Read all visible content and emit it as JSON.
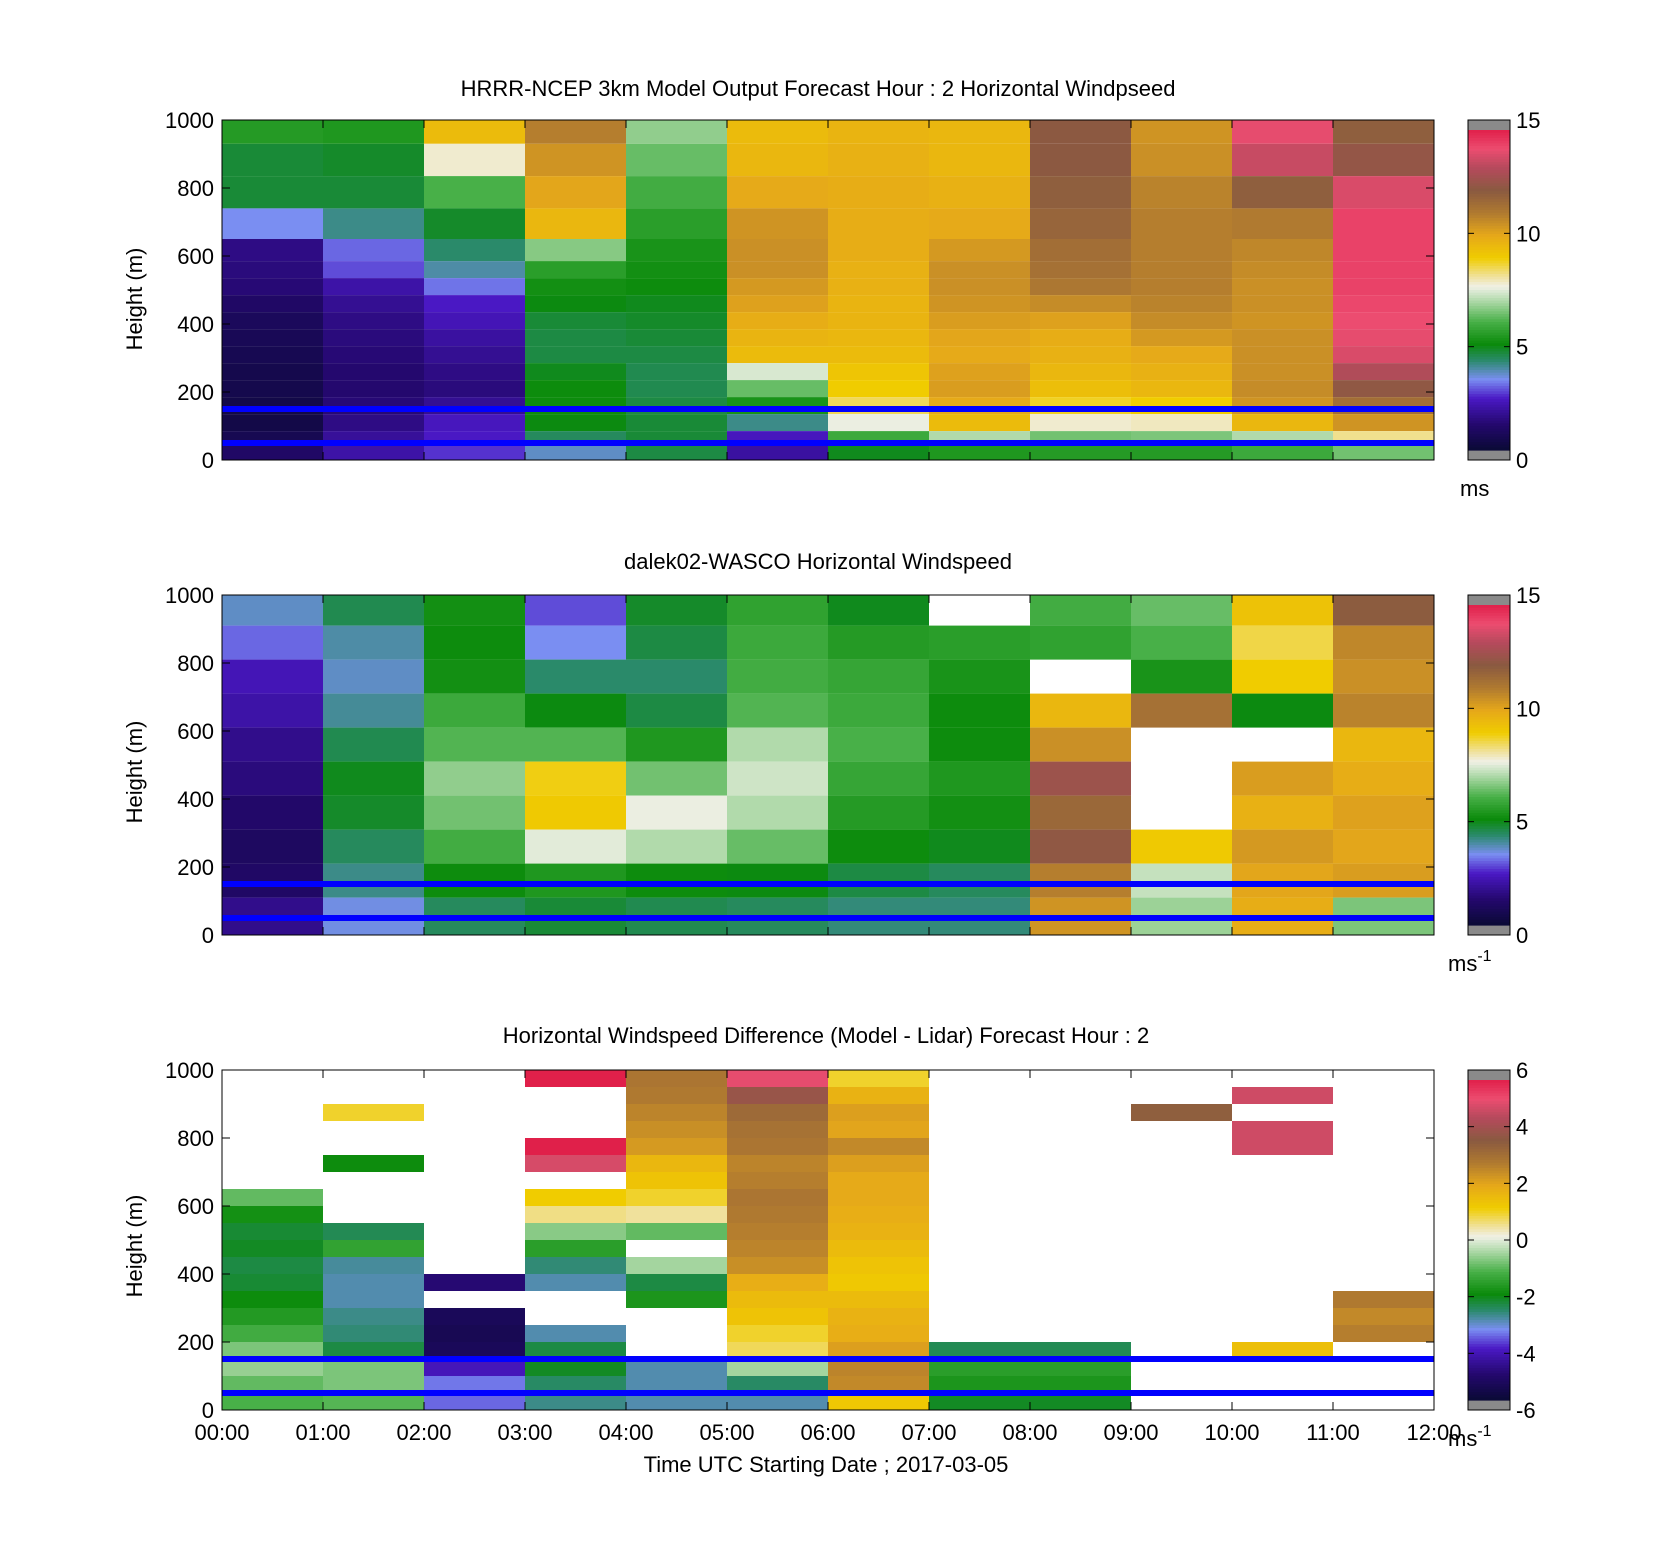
{
  "figure": {
    "xlabel": "Time UTC  Starting Date ; 2017-03-05",
    "x_ticks": [
      "00:00",
      "01:00",
      "02:00",
      "03:00",
      "04:00",
      "05:00",
      "06:00",
      "07:00",
      "08:00",
      "09:00",
      "10:00",
      "11:00",
      "12:00"
    ]
  },
  "chart_data": [
    {
      "type": "heatmap",
      "title": "HRRR-NCEP 3km Model Output   Forecast Hour : 2 Horizontal Windpseed",
      "ylabel": "Height (m)",
      "x_unit": "hours UTC",
      "xlim": [
        0,
        12
      ],
      "ylim": [
        0,
        1000
      ],
      "y_ticks": [
        "0",
        "200",
        "400",
        "600",
        "800",
        "1000"
      ],
      "colorbar": {
        "ticks": [
          "0",
          "5",
          "10",
          "15"
        ],
        "range": [
          0,
          15
        ],
        "unit_label": "ms",
        "unit_sup": ""
      },
      "reference_lines_m": [
        150,
        50
      ],
      "reference_line_color": "#0000ff",
      "heights_m": [
        980,
        880,
        790,
        690,
        610,
        560,
        510,
        460,
        410,
        360,
        310,
        260,
        210,
        160,
        110,
        60,
        25
      ],
      "hours": [
        0,
        1,
        2,
        3,
        4,
        5,
        6,
        7,
        8,
        9,
        10,
        11
      ],
      "values": [
        [
          5.4,
          5.3,
          9.5,
          11.0,
          6.7,
          9.5,
          9.7,
          9.6,
          12.2,
          10.5,
          14.0,
          12.0
        ],
        [
          4.6,
          4.7,
          7.8,
          10.5,
          6.3,
          9.6,
          9.8,
          9.6,
          12.2,
          10.6,
          13.5,
          12.4
        ],
        [
          4.6,
          4.6,
          6.0,
          10.1,
          5.9,
          10.0,
          9.9,
          9.8,
          12.0,
          10.9,
          12.0,
          13.8
        ],
        [
          3.3,
          4.0,
          4.7,
          9.6,
          5.5,
          10.5,
          9.9,
          10.0,
          11.8,
          11.0,
          11.1,
          14.3
        ],
        [
          1.5,
          3.0,
          4.2,
          6.6,
          5.2,
          10.6,
          9.9,
          10.4,
          11.5,
          11.0,
          10.8,
          14.3
        ],
        [
          1.4,
          2.8,
          3.8,
          5.5,
          5.1,
          10.6,
          9.8,
          10.6,
          11.4,
          11.0,
          10.7,
          14.3
        ],
        [
          1.3,
          2.0,
          3.1,
          5.1,
          5.0,
          10.4,
          9.8,
          10.6,
          11.2,
          11.0,
          10.6,
          14.3
        ],
        [
          1.0,
          1.7,
          2.4,
          4.9,
          4.8,
          10.2,
          9.7,
          10.5,
          10.7,
          10.9,
          10.6,
          14.2
        ],
        [
          0.8,
          1.5,
          2.2,
          4.6,
          4.7,
          9.9,
          9.7,
          10.3,
          10.2,
          10.7,
          10.5,
          14.1
        ],
        [
          0.7,
          1.4,
          1.9,
          4.5,
          4.6,
          9.7,
          9.6,
          10.1,
          9.9,
          10.4,
          10.6,
          14.0
        ],
        [
          0.6,
          1.3,
          1.7,
          4.5,
          4.5,
          9.5,
          9.5,
          10.0,
          9.8,
          10.0,
          10.6,
          13.8
        ],
        [
          0.5,
          1.2,
          1.5,
          4.8,
          4.4,
          7.4,
          9.2,
          10.2,
          9.6,
          9.8,
          10.6,
          13.1
        ],
        [
          0.5,
          1.2,
          1.4,
          5.0,
          4.4,
          6.3,
          9.0,
          10.3,
          9.4,
          9.6,
          10.7,
          12.3
        ],
        [
          0.4,
          1.3,
          1.7,
          5.0,
          4.5,
          5.2,
          8.5,
          10.0,
          8.8,
          9.0,
          10.5,
          11.5
        ],
        [
          0.4,
          1.5,
          2.3,
          4.9,
          4.6,
          4.0,
          7.6,
          9.5,
          7.8,
          7.9,
          9.6,
          10.5
        ],
        [
          0.6,
          1.8,
          2.4,
          4.3,
          4.6,
          2.3,
          5.8,
          7.0,
          6.4,
          6.5,
          7.0,
          8.2
        ],
        [
          1.0,
          2.0,
          2.6,
          3.6,
          4.5,
          1.9,
          4.8,
          5.3,
          5.4,
          5.4,
          5.8,
          6.4
        ]
      ]
    },
    {
      "type": "heatmap",
      "title": "dalek02-WASCO  Horizontal Windspeed",
      "ylabel": "Height (m)",
      "x_unit": "hours UTC",
      "xlim": [
        0,
        12
      ],
      "ylim": [
        0,
        1000
      ],
      "y_ticks": [
        "0",
        "200",
        "400",
        "600",
        "800",
        "1000"
      ],
      "colorbar": {
        "ticks": [
          "0",
          "5",
          "10",
          "15"
        ],
        "range": [
          0,
          15
        ],
        "unit_label": "ms",
        "unit_sup": "-1"
      },
      "reference_lines_m": [
        150,
        50
      ],
      "reference_line_color": "#0000ff",
      "heights_m": [
        960,
        860,
        760,
        660,
        560,
        460,
        360,
        260,
        160,
        60
      ],
      "hours": [
        0,
        1,
        2,
        3,
        4,
        5,
        6,
        7,
        8,
        9,
        10,
        11
      ],
      "values": [
        [
          3.6,
          4.4,
          5.1,
          2.8,
          4.7,
          5.6,
          4.8,
          null,
          5.9,
          6.3,
          9.3,
          12.1
        ],
        [
          3.0,
          3.8,
          5.0,
          3.3,
          4.5,
          5.8,
          5.4,
          5.5,
          5.6,
          6.0,
          8.6,
          10.8
        ],
        [
          2.2,
          3.6,
          5.1,
          4.2,
          4.2,
          5.9,
          5.7,
          5.2,
          null,
          5.2,
          9.0,
          10.6
        ],
        [
          2.0,
          3.9,
          5.8,
          4.9,
          4.5,
          6.1,
          5.8,
          5.0,
          9.6,
          11.4,
          4.9,
          10.9
        ],
        [
          1.6,
          4.4,
          6.1,
          6.1,
          5.3,
          7.0,
          6.0,
          5.0,
          10.6,
          null,
          null,
          9.6
        ],
        [
          1.4,
          4.8,
          6.7,
          8.9,
          6.4,
          7.3,
          5.7,
          5.3,
          12.6,
          null,
          10.3,
          9.9
        ],
        [
          1.1,
          4.7,
          6.4,
          9.1,
          7.6,
          7.0,
          5.4,
          5.1,
          11.7,
          null,
          9.8,
          10.2
        ],
        [
          0.9,
          4.3,
          5.9,
          7.5,
          7.0,
          6.3,
          5.0,
          4.8,
          12.3,
          9.1,
          10.4,
          10.1
        ],
        [
          1.0,
          4.0,
          5.0,
          5.3,
          5.0,
          4.9,
          4.5,
          4.3,
          11.0,
          7.2,
          10.1,
          10.3
        ],
        [
          1.6,
          3.4,
          4.3,
          4.6,
          4.4,
          4.3,
          4.1,
          4.1,
          10.5,
          6.8,
          9.9,
          6.5
        ]
      ]
    },
    {
      "type": "heatmap",
      "title": "Horizontal Windspeed Difference (Model - Lidar) Forecast Hour : 2",
      "ylabel": "Height (m)",
      "xlabel": "Time UTC  Starting Date ; 2017-03-05",
      "x_unit": "hours UTC",
      "xlim": [
        0,
        12
      ],
      "ylim": [
        0,
        1000
      ],
      "y_ticks": [
        "0",
        "200",
        "400",
        "600",
        "800",
        "1000"
      ],
      "colorbar": {
        "ticks": [
          "-6",
          "-4",
          "-2",
          "0",
          "2",
          "4",
          "6"
        ],
        "range": [
          -6,
          6
        ],
        "unit_label": "ms",
        "unit_sup": "-1"
      },
      "reference_lines_m": [
        150,
        50
      ],
      "reference_line_color": "#0000ff",
      "heights_m": [
        975,
        925,
        875,
        825,
        775,
        725,
        675,
        625,
        575,
        525,
        475,
        425,
        375,
        325,
        275,
        225,
        175,
        125,
        75,
        25
      ],
      "hours": [
        0,
        1,
        2,
        3,
        4,
        5,
        6,
        7,
        8,
        9,
        10,
        11
      ],
      "values": [
        [
          null,
          null,
          null,
          6.0,
          3.0,
          5.2,
          1.0,
          null,
          null,
          null,
          null,
          null
        ],
        [
          null,
          null,
          null,
          null,
          2.9,
          4.0,
          1.8,
          null,
          null,
          null,
          4.9,
          null
        ],
        [
          null,
          1.0,
          null,
          null,
          2.7,
          3.3,
          2.2,
          null,
          null,
          3.6,
          null,
          null
        ],
        [
          null,
          null,
          null,
          null,
          2.5,
          3.1,
          2.1,
          null,
          null,
          null,
          4.9,
          null
        ],
        [
          null,
          null,
          null,
          6.0,
          2.3,
          3.0,
          2.6,
          null,
          null,
          null,
          4.9,
          null
        ],
        [
          null,
          -2.0,
          null,
          5.0,
          1.7,
          2.7,
          2.2,
          null,
          null,
          null,
          null,
          null
        ],
        [
          null,
          null,
          null,
          null,
          1.4,
          2.8,
          2.0,
          null,
          null,
          null,
          null,
          null
        ],
        [
          -1.0,
          null,
          null,
          1.2,
          1.0,
          3.0,
          2.0,
          null,
          null,
          null,
          null,
          null
        ],
        [
          -1.9,
          null,
          null,
          0.6,
          0.5,
          2.9,
          1.9,
          null,
          null,
          null,
          null,
          null
        ],
        [
          -2.3,
          -2.5,
          null,
          -0.7,
          -1.0,
          2.8,
          1.8,
          null,
          null,
          null,
          null,
          null
        ],
        [
          -2.2,
          -1.5,
          null,
          -1.6,
          null,
          2.7,
          1.6,
          null,
          null,
          null,
          null,
          null
        ],
        [
          -2.4,
          -2.9,
          null,
          -2.7,
          -0.5,
          2.5,
          1.4,
          null,
          null,
          null,
          null,
          null
        ],
        [
          -2.3,
          -3.0,
          -5.0,
          -3.0,
          -2.4,
          1.9,
          1.3,
          null,
          null,
          null,
          null,
          null
        ],
        [
          -2.0,
          -3.0,
          null,
          null,
          -1.8,
          1.6,
          1.6,
          null,
          null,
          null,
          null,
          2.9
        ],
        [
          -1.7,
          -2.8,
          -5.4,
          null,
          null,
          1.4,
          1.8,
          null,
          null,
          null,
          null,
          2.6
        ],
        [
          -1.3,
          -2.7,
          -5.5,
          -3.0,
          null,
          1.0,
          1.9,
          null,
          null,
          null,
          null,
          2.8
        ],
        [
          -0.8,
          -2.4,
          -5.4,
          -2.4,
          null,
          0.8,
          2.2,
          -2.5,
          -2.5,
          null,
          1.5,
          null
        ],
        [
          -0.6,
          -0.8,
          -4.2,
          -2.2,
          -3.0,
          -0.5,
          2.7,
          -1.6,
          -1.6,
          null,
          null,
          null
        ],
        [
          -1.0,
          -0.8,
          -3.5,
          -2.6,
          -3.0,
          -2.6,
          2.6,
          -1.8,
          -1.8,
          null,
          null,
          null
        ],
        [
          -1.2,
          -1.1,
          -3.6,
          -2.8,
          -3.0,
          -3.0,
          1.3,
          -2.2,
          -2.2,
          null,
          null,
          null
        ]
      ]
    }
  ],
  "colormap": [
    [
      0.0,
      "#0a0a35"
    ],
    [
      0.08,
      "#24086e"
    ],
    [
      0.16,
      "#4a18c4"
    ],
    [
      0.22,
      "#7a8ef2"
    ],
    [
      0.28,
      "#2a8a6a"
    ],
    [
      0.33,
      "#0a8a0a"
    ],
    [
      0.4,
      "#48b048"
    ],
    [
      0.47,
      "#b6dcb0"
    ],
    [
      0.51,
      "#f0f0e6"
    ],
    [
      0.54,
      "#f0e2a0"
    ],
    [
      0.6,
      "#f0cc00"
    ],
    [
      0.67,
      "#e6a81a"
    ],
    [
      0.74,
      "#b07a30"
    ],
    [
      0.81,
      "#8a5a40"
    ],
    [
      0.88,
      "#b44a5c"
    ],
    [
      0.94,
      "#ec4c70"
    ],
    [
      1.0,
      "#e0204a"
    ]
  ],
  "colorbar_end_color": "#8a8a8a"
}
